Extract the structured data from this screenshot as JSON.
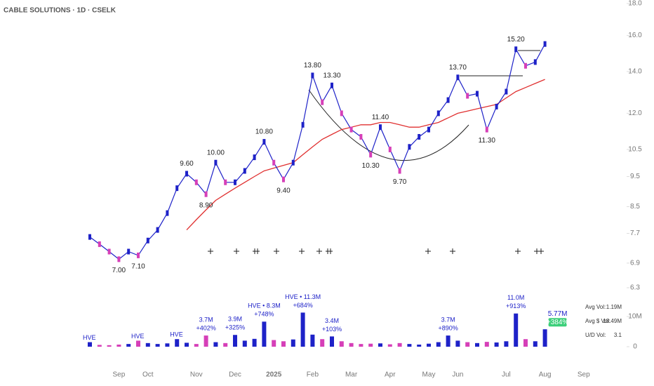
{
  "chart_data": {
    "type": "stock",
    "title": "CABLE SOLUTIONS · 1D · CSELK",
    "log_y": true,
    "categories": [
      null,
      null,
      null,
      "Sep",
      null,
      null,
      "Oct",
      null,
      null,
      null,
      null,
      "Nov",
      null,
      null,
      null,
      "Dec",
      null,
      null,
      null,
      "2025",
      null,
      null,
      null,
      "Feb",
      null,
      null,
      null,
      "Mar",
      null,
      null,
      null,
      "Apr",
      null,
      null,
      null,
      "May",
      null,
      null,
      "Jun",
      null,
      null,
      null,
      null,
      "Jul",
      null,
      null,
      null,
      "Aug",
      null,
      null,
      null,
      "Sep"
    ],
    "ylim": [
      6.3,
      18
    ],
    "yticks": [
      6.3,
      6.9,
      7.7,
      8.5,
      9.5,
      10.5,
      {
        "value": 12,
        "label": "12.0"
      },
      {
        "value": 14,
        "label": "14.0"
      },
      {
        "value": 16,
        "label": "16.0"
      },
      {
        "value": 18,
        "label": "18.0"
      }
    ],
    "price": {
      "color": "#1e22c8",
      "up_color": "#1e22c8",
      "down_color": "#d63fb8",
      "values": [
        7.6,
        7.4,
        7.2,
        7.0,
        7.2,
        7.1,
        7.5,
        7.8,
        8.3,
        9.1,
        9.6,
        9.3,
        8.9,
        10.0,
        9.3,
        9.3,
        9.7,
        10.2,
        10.8,
        10.0,
        9.4,
        10.0,
        11.5,
        13.8,
        12.5,
        13.3,
        12.0,
        11.3,
        11.0,
        10.3,
        11.4,
        10.5,
        9.7,
        10.6,
        11.0,
        11.3,
        12.0,
        12.6,
        13.7,
        12.8,
        12.9,
        11.3,
        12.3,
        13.0,
        15.2,
        14.3,
        14.5,
        15.5,
        null,
        null,
        null,
        null
      ],
      "value_labels": [
        null,
        null,
        null,
        "7.00",
        null,
        "7.10",
        null,
        null,
        null,
        null,
        "9.60",
        null,
        "8.90",
        "10.00",
        null,
        null,
        null,
        null,
        "10.80",
        null,
        "9.40",
        null,
        null,
        "13.80",
        null,
        "13.30",
        null,
        null,
        null,
        "10.30",
        "11.40",
        null,
        "9.70",
        null,
        null,
        null,
        null,
        null,
        "13.70",
        null,
        null,
        "11.30",
        null,
        null,
        "15.20",
        null,
        null,
        null,
        null,
        null,
        null,
        null
      ]
    },
    "moving_average": {
      "color": "#e03030",
      "values": [
        null,
        null,
        null,
        null,
        null,
        null,
        null,
        null,
        null,
        null,
        7.8,
        8.1,
        8.4,
        8.7,
        8.9,
        9.1,
        9.3,
        9.5,
        9.7,
        9.8,
        9.9,
        10.0,
        10.3,
        10.6,
        10.9,
        11.1,
        11.3,
        11.4,
        11.5,
        11.5,
        11.6,
        11.6,
        11.5,
        11.4,
        11.4,
        11.5,
        11.6,
        11.8,
        12.0,
        12.1,
        12.2,
        12.3,
        12.4,
        12.7,
        13.0,
        13.2,
        13.4,
        13.6,
        null,
        null,
        null,
        null
      ]
    },
    "volume": {
      "ylim": [
        0,
        20000000
      ],
      "yticks": [
        0,
        {
          "value": 10000000,
          "label": "10M"
        }
      ],
      "values": [
        1500000,
        600000,
        500000,
        700000,
        900000,
        2000000,
        1200000,
        900000,
        1100000,
        2500000,
        1300000,
        900000,
        3700000,
        1500000,
        1200000,
        3900000,
        2000000,
        2600000,
        8300000,
        2200000,
        1800000,
        2400000,
        11300000,
        4000000,
        2500000,
        3400000,
        1800000,
        1200000,
        900000,
        1000000,
        1100000,
        800000,
        1200000,
        900000,
        700000,
        1000000,
        1500000,
        3700000,
        2000000,
        1500000,
        1200000,
        1600000,
        1400000,
        1800000,
        11000000,
        2500000,
        1800000,
        5770000,
        null,
        null,
        null,
        null
      ],
      "value_labels": [
        null,
        null,
        null,
        null,
        null,
        null,
        null,
        null,
        null,
        null,
        null,
        null,
        "3.7M",
        null,
        null,
        "3.9M",
        null,
        null,
        "HVE • 8.3M",
        null,
        null,
        null,
        "HVE • 11.3M",
        null,
        null,
        "3.4M",
        null,
        null,
        null,
        null,
        null,
        null,
        null,
        null,
        null,
        null,
        null,
        "3.7M",
        null,
        null,
        null,
        null,
        null,
        null,
        "11.0M",
        null,
        null,
        "5.77M",
        null,
        null,
        null,
        null
      ],
      "changes": [
        null,
        null,
        null,
        null,
        null,
        null,
        null,
        null,
        null,
        null,
        null,
        null,
        "+402%",
        null,
        null,
        "+325%",
        null,
        null,
        "+748%",
        null,
        null,
        null,
        "+684%",
        null,
        null,
        "+103%",
        null,
        null,
        null,
        null,
        null,
        null,
        null,
        null,
        null,
        null,
        null,
        "+890%",
        null,
        null,
        null,
        null,
        null,
        null,
        "+913%",
        null,
        null,
        "+384%",
        null,
        null,
        null,
        null
      ],
      "flags": [
        "HVE",
        null,
        null,
        null,
        null,
        "HVE",
        null,
        null,
        null,
        "HVE",
        null,
        null,
        null,
        null,
        null,
        null,
        null,
        null,
        null,
        null,
        null,
        null,
        null,
        null,
        null,
        null,
        null,
        null,
        null,
        null,
        null,
        null,
        null,
        null,
        null,
        null,
        null,
        null,
        null,
        null,
        null,
        null,
        null,
        null,
        null,
        null,
        null,
        null,
        null,
        null,
        null,
        null
      ]
    },
    "stats": [
      {
        "label": "Avg Vol:",
        "value": "1.19M"
      },
      {
        "label": "Avg $ Vol:",
        "value": "18.49M"
      },
      {
        "label": "U/D Vol:",
        "value": "3.1"
      }
    ]
  }
}
